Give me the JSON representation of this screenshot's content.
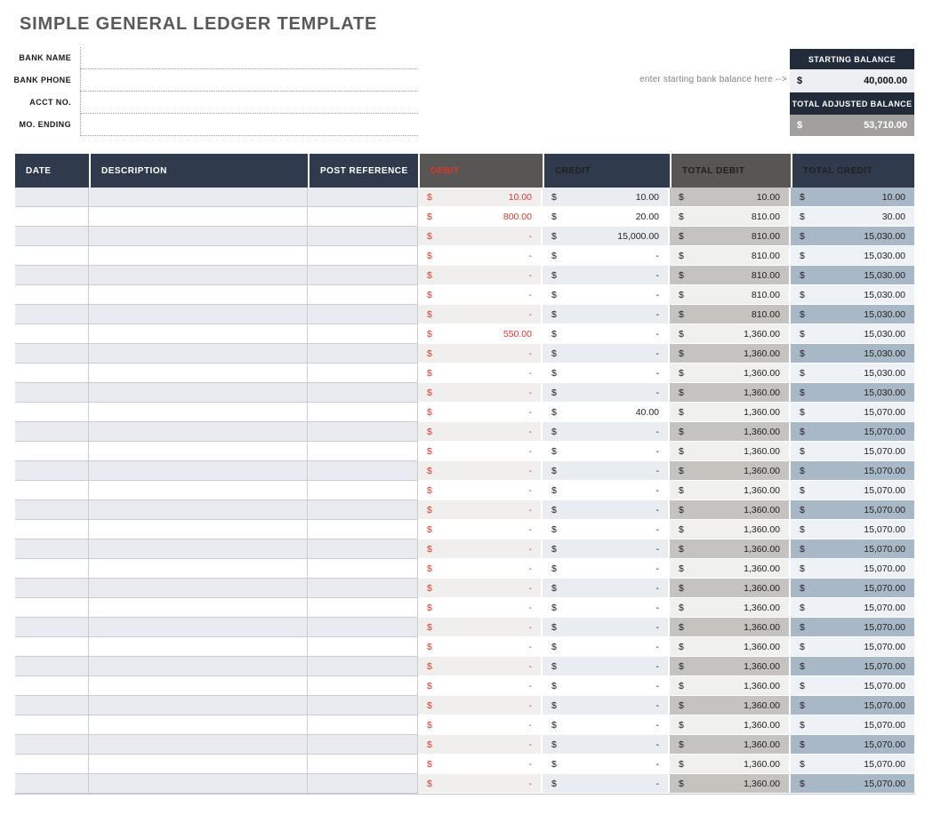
{
  "page": {
    "title": "SIMPLE GENERAL LEDGER TEMPLATE"
  },
  "bank_info": {
    "fields": [
      {
        "label": "BANK NAME",
        "value": ""
      },
      {
        "label": "BANK PHONE",
        "value": ""
      },
      {
        "label": "ACCT NO.",
        "value": ""
      },
      {
        "label": "MO. ENDING",
        "value": ""
      }
    ]
  },
  "balance_panel": {
    "hint": "enter starting bank balance here -->",
    "starting_balance_label": "STARTING BALANCE",
    "starting_balance_currency": "$",
    "starting_balance_value": "40,000.00",
    "adjusted_balance_label": "TOTAL ADJUSTED BALANCE",
    "adjusted_balance_currency": "$",
    "adjusted_balance_value": "53,710.00"
  },
  "colors": {
    "header_navy": "#2f3b4d",
    "header_gray": "#575654",
    "balance_header_navy": "#212b39",
    "debit_text_red": "#d9382c",
    "adjusted_value_gray": "#a1a09f",
    "total_debit_shade": "#c4c3c0",
    "total_credit_shade": "#a9b8c7"
  },
  "ledger_table": {
    "columns": [
      "DATE",
      "DESCRIPTION",
      "POST REFERENCE",
      "DEBIT",
      "CREDIT",
      "TOTAL DEBIT",
      "TOTAL CREDIT"
    ],
    "currency_symbol": "$",
    "rows": [
      {
        "date": "",
        "description": "",
        "post_reference": "",
        "debit": "10.00",
        "credit": "10.00",
        "total_debit": "10.00",
        "total_credit": "10.00"
      },
      {
        "date": "",
        "description": "",
        "post_reference": "",
        "debit": "800.00",
        "credit": "20.00",
        "total_debit": "810.00",
        "total_credit": "30.00"
      },
      {
        "date": "",
        "description": "",
        "post_reference": "",
        "debit": "-",
        "credit": "15,000.00",
        "total_debit": "810.00",
        "total_credit": "15,030.00"
      },
      {
        "date": "",
        "description": "",
        "post_reference": "",
        "debit": "-",
        "credit": "-",
        "total_debit": "810.00",
        "total_credit": "15,030.00"
      },
      {
        "date": "",
        "description": "",
        "post_reference": "",
        "debit": "-",
        "credit": "-",
        "total_debit": "810.00",
        "total_credit": "15,030.00"
      },
      {
        "date": "",
        "description": "",
        "post_reference": "",
        "debit": "-",
        "credit": "-",
        "total_debit": "810.00",
        "total_credit": "15,030.00"
      },
      {
        "date": "",
        "description": "",
        "post_reference": "",
        "debit": "-",
        "credit": "-",
        "total_debit": "810.00",
        "total_credit": "15,030.00"
      },
      {
        "date": "",
        "description": "",
        "post_reference": "",
        "debit": "550.00",
        "credit": "-",
        "total_debit": "1,360.00",
        "total_credit": "15,030.00"
      },
      {
        "date": "",
        "description": "",
        "post_reference": "",
        "debit": "-",
        "credit": "-",
        "total_debit": "1,360.00",
        "total_credit": "15,030.00"
      },
      {
        "date": "",
        "description": "",
        "post_reference": "",
        "debit": "-",
        "credit": "-",
        "total_debit": "1,360.00",
        "total_credit": "15,030.00"
      },
      {
        "date": "",
        "description": "",
        "post_reference": "",
        "debit": "-",
        "credit": "-",
        "total_debit": "1,360.00",
        "total_credit": "15,030.00"
      },
      {
        "date": "",
        "description": "",
        "post_reference": "",
        "debit": "-",
        "credit": "40.00",
        "total_debit": "1,360.00",
        "total_credit": "15,070.00"
      },
      {
        "date": "",
        "description": "",
        "post_reference": "",
        "debit": "-",
        "credit": "-",
        "total_debit": "1,360.00",
        "total_credit": "15,070.00"
      },
      {
        "date": "",
        "description": "",
        "post_reference": "",
        "debit": "-",
        "credit": "-",
        "total_debit": "1,360.00",
        "total_credit": "15,070.00"
      },
      {
        "date": "",
        "description": "",
        "post_reference": "",
        "debit": "-",
        "credit": "-",
        "total_debit": "1,360.00",
        "total_credit": "15,070.00"
      },
      {
        "date": "",
        "description": "",
        "post_reference": "",
        "debit": "-",
        "credit": "-",
        "total_debit": "1,360.00",
        "total_credit": "15,070.00"
      },
      {
        "date": "",
        "description": "",
        "post_reference": "",
        "debit": "-",
        "credit": "-",
        "total_debit": "1,360.00",
        "total_credit": "15,070.00"
      },
      {
        "date": "",
        "description": "",
        "post_reference": "",
        "debit": "-",
        "credit": "-",
        "total_debit": "1,360.00",
        "total_credit": "15,070.00"
      },
      {
        "date": "",
        "description": "",
        "post_reference": "",
        "debit": "-",
        "credit": "-",
        "total_debit": "1,360.00",
        "total_credit": "15,070.00"
      },
      {
        "date": "",
        "description": "",
        "post_reference": "",
        "debit": "-",
        "credit": "-",
        "total_debit": "1,360.00",
        "total_credit": "15,070.00"
      },
      {
        "date": "",
        "description": "",
        "post_reference": "",
        "debit": "-",
        "credit": "-",
        "total_debit": "1,360.00",
        "total_credit": "15,070.00"
      },
      {
        "date": "",
        "description": "",
        "post_reference": "",
        "debit": "-",
        "credit": "-",
        "total_debit": "1,360.00",
        "total_credit": "15,070.00"
      },
      {
        "date": "",
        "description": "",
        "post_reference": "",
        "debit": "-",
        "credit": "-",
        "total_debit": "1,360.00",
        "total_credit": "15,070.00"
      },
      {
        "date": "",
        "description": "",
        "post_reference": "",
        "debit": "-",
        "credit": "-",
        "total_debit": "1,360.00",
        "total_credit": "15,070.00"
      },
      {
        "date": "",
        "description": "",
        "post_reference": "",
        "debit": "-",
        "credit": "-",
        "total_debit": "1,360.00",
        "total_credit": "15,070.00"
      },
      {
        "date": "",
        "description": "",
        "post_reference": "",
        "debit": "-",
        "credit": "-",
        "total_debit": "1,360.00",
        "total_credit": "15,070.00"
      },
      {
        "date": "",
        "description": "",
        "post_reference": "",
        "debit": "-",
        "credit": "-",
        "total_debit": "1,360.00",
        "total_credit": "15,070.00"
      },
      {
        "date": "",
        "description": "",
        "post_reference": "",
        "debit": "-",
        "credit": "-",
        "total_debit": "1,360.00",
        "total_credit": "15,070.00"
      },
      {
        "date": "",
        "description": "",
        "post_reference": "",
        "debit": "-",
        "credit": "-",
        "total_debit": "1,360.00",
        "total_credit": "15,070.00"
      },
      {
        "date": "",
        "description": "",
        "post_reference": "",
        "debit": "-",
        "credit": "-",
        "total_debit": "1,360.00",
        "total_credit": "15,070.00"
      },
      {
        "date": "",
        "description": "",
        "post_reference": "",
        "debit": "-",
        "credit": "-",
        "total_debit": "1,360.00",
        "total_credit": "15,070.00"
      }
    ]
  }
}
